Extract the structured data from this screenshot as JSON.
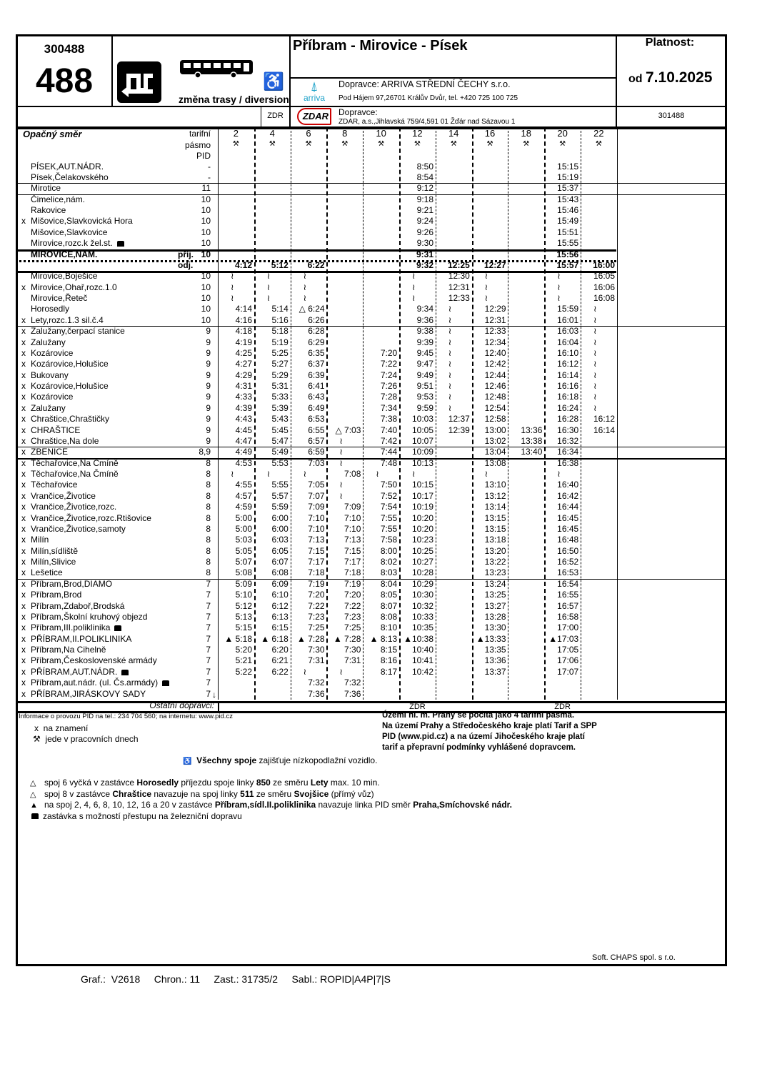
{
  "header": {
    "line_code": "300488",
    "line_number": "488",
    "diversion_label": "změna trasy / diversion",
    "route_title": "Příbram - Mirovice - Písek",
    "validity_label": "Platnost:",
    "validity_prefix": "od",
    "validity_date": "7.10.2025",
    "operator1_label": "Dopravce: ARRIVA STŘEDNÍ ČECHY s.r.o.",
    "operator1_address": "Pod Hájem 97,26701 Králův Dvůr, tel. +420 725 100 725",
    "operator1_logo": "arriva",
    "operator2_code": "ZDR",
    "operator2_logo": "ZDAR",
    "operator2_label": "Dopravce:",
    "operator2_address": "ZDAR, a.s.,Jihlavská 759/4,591 01 Žďár nad Sázavou 1",
    "alt_code": "301488",
    "icons": [
      "diversion-icon",
      "bus-icon",
      "wheelchair-icon"
    ]
  },
  "table": {
    "direction_label": "Opačný směr",
    "zone_header": [
      "tarifní",
      "pásmo",
      "PID"
    ],
    "workday_symbol": "⚒",
    "trips": [
      "2",
      "4",
      "6",
      "8",
      "10",
      "12",
      "14",
      "16",
      "18",
      "20",
      "22"
    ],
    "rows": [
      {
        "m": "",
        "n": "PÍSEK,AUT.NÁDR.",
        "z": "-",
        "t": [
          "",
          "",
          "",
          "",
          "",
          "8:50",
          "",
          "",
          "",
          "15:15",
          ""
        ]
      },
      {
        "m": "",
        "n": "Písek,Čelakovského",
        "z": "-",
        "t": [
          "",
          "",
          "",
          "",
          "",
          "8:54",
          "",
          "",
          "",
          "15:19",
          ""
        ]
      },
      {
        "m": "",
        "n": "Mirotice",
        "z": "11",
        "t": [
          "",
          "",
          "",
          "",
          "",
          "9:12",
          "",
          "",
          "",
          "15:37",
          ""
        ]
      },
      {
        "m": "",
        "n": "Čimelice,nám.",
        "z": "10",
        "t": [
          "",
          "",
          "",
          "",
          "",
          "9:18",
          "",
          "",
          "",
          "15:43",
          ""
        ]
      },
      {
        "m": "",
        "n": "Rakovice",
        "z": "10",
        "t": [
          "",
          "",
          "",
          "",
          "",
          "9:21",
          "",
          "",
          "",
          "15:46",
          ""
        ]
      },
      {
        "m": "x",
        "n": "Mišovice,Slavkovická Hora",
        "z": "10",
        "t": [
          "",
          "",
          "",
          "",
          "",
          "9:24",
          "",
          "",
          "",
          "15:49",
          ""
        ]
      },
      {
        "m": "",
        "n": "Mišovice,Slavkovice",
        "z": "10",
        "t": [
          "",
          "",
          "",
          "",
          "",
          "9:26",
          "",
          "",
          "",
          "15:51",
          ""
        ]
      },
      {
        "m": "",
        "n": "Mirovice,rozc.k žel.st.",
        "z": "10",
        "train": true,
        "t": [
          "",
          "",
          "",
          "",
          "",
          "9:30",
          "",
          "",
          "",
          "15:55",
          ""
        ]
      },
      {
        "m": "",
        "n": "MIROVICE,NÁM.",
        "s": "příj.",
        "z": "10",
        "bold": true,
        "t": [
          "",
          "",
          "",
          "",
          "",
          "9:31",
          "",
          "",
          "",
          "15:56",
          ""
        ]
      },
      {
        "m": "",
        "n": "",
        "s": "odj.",
        "z": "",
        "bold": true,
        "t": [
          "4:12",
          "5:12",
          "6:22",
          "",
          "",
          "9:32",
          "12:25",
          "12:27",
          "",
          "15:57",
          "16:00"
        ]
      },
      {
        "m": "",
        "n": "Mirovice,Boješice",
        "z": "10",
        "t": [
          "~",
          "~",
          "~",
          "",
          "",
          "~",
          "12:30",
          "~",
          "",
          "~",
          "16:05"
        ]
      },
      {
        "m": "x",
        "n": "Mirovice,Ohař,rozc.1.0",
        "z": "10",
        "t": [
          "~",
          "~",
          "~",
          "",
          "",
          "~",
          "12:31",
          "~",
          "",
          "~",
          "16:06"
        ]
      },
      {
        "m": "",
        "n": "Mirovice,Řeteč",
        "z": "10",
        "t": [
          "~",
          "~",
          "~",
          "",
          "",
          "~",
          "12:33",
          "~",
          "",
          "~",
          "16:08"
        ]
      },
      {
        "m": "",
        "n": "Horosedly",
        "z": "10",
        "t": [
          "4:14",
          "5:14",
          "△ 6:24",
          "",
          "",
          "9:34",
          "~",
          "12:29",
          "",
          "15:59",
          "~"
        ]
      },
      {
        "m": "x",
        "n": "Lety,rozc.1.3 sil.č.4",
        "z": "10",
        "t": [
          "4:16",
          "5:16",
          "6:26",
          "",
          "",
          "9:36",
          "~",
          "12:31",
          "",
          "16:01",
          "~"
        ]
      },
      {
        "m": "x",
        "n": "Zalužany,čerpací stanice",
        "z": "9",
        "t": [
          "4:18",
          "5:18",
          "6:28",
          "",
          "",
          "9:38",
          "~",
          "12:33",
          "",
          "16:03",
          "~"
        ]
      },
      {
        "m": "x",
        "n": "Zalužany",
        "z": "9",
        "t": [
          "4:19",
          "5:19",
          "6:29",
          "",
          "",
          "9:39",
          "~",
          "12:34",
          "",
          "16:04",
          "~"
        ]
      },
      {
        "m": "x",
        "n": "Kozárovice",
        "z": "9",
        "t": [
          "4:25",
          "5:25",
          "6:35",
          "",
          "7:20",
          "9:45",
          "~",
          "12:40",
          "",
          "16:10",
          "~"
        ]
      },
      {
        "m": "x",
        "n": "Kozárovice,Holušice",
        "z": "9",
        "t": [
          "4:27",
          "5:27",
          "6:37",
          "",
          "7:22",
          "9:47",
          "~",
          "12:42",
          "",
          "16:12",
          "~"
        ]
      },
      {
        "m": "x",
        "n": "Bukovany",
        "z": "9",
        "t": [
          "4:29",
          "5:29",
          "6:39",
          "",
          "7:24",
          "9:49",
          "~",
          "12:44",
          "",
          "16:14",
          "~"
        ]
      },
      {
        "m": "x",
        "n": "Kozárovice,Holušice",
        "z": "9",
        "t": [
          "4:31",
          "5:31",
          "6:41",
          "",
          "7:26",
          "9:51",
          "~",
          "12:46",
          "",
          "16:16",
          "~"
        ]
      },
      {
        "m": "x",
        "n": "Kozárovice",
        "z": "9",
        "t": [
          "4:33",
          "5:33",
          "6:43",
          "",
          "7:28",
          "9:53",
          "~",
          "12:48",
          "",
          "16:18",
          "~"
        ]
      },
      {
        "m": "x",
        "n": "Zalužany",
        "z": "9",
        "t": [
          "4:39",
          "5:39",
          "6:49",
          "",
          "7:34",
          "9:59",
          "~",
          "12:54",
          "",
          "16:24",
          "~"
        ]
      },
      {
        "m": "x",
        "n": "Chraštice,Chraštičky",
        "z": "9",
        "t": [
          "4:43",
          "5:43",
          "6:53",
          "",
          "7:38",
          "10:03",
          "12:37",
          "12:58",
          "",
          "16:28",
          "16:12"
        ]
      },
      {
        "m": "x",
        "n": "CHRAŠTICE",
        "z": "9",
        "t": [
          "4:45",
          "5:45",
          "6:55",
          "△ 7:03",
          "7:40",
          "10:05",
          "12:39",
          "13:00",
          "13:36",
          "16:30",
          "16:14"
        ]
      },
      {
        "m": "x",
        "n": "Chraštice,Na dole",
        "z": "9",
        "t": [
          "4:47",
          "5:47",
          "6:57",
          "~",
          "7:42",
          "10:07",
          "",
          "13:02",
          "13:38",
          "16:32",
          ""
        ]
      },
      {
        "m": "x",
        "n": "ZBENICE",
        "z": "8,9",
        "t": [
          "4:49",
          "5:49",
          "6:59",
          "~",
          "7:44",
          "10:09",
          "",
          "13:04",
          "13:40",
          "16:34",
          ""
        ]
      },
      {
        "m": "x",
        "n": "Těchařovice,Na Čmíně",
        "z": "8",
        "t": [
          "4:53",
          "5:53",
          "7:03",
          "~",
          "7:48",
          "10:13",
          "",
          "13:08",
          "",
          "16:38",
          ""
        ]
      },
      {
        "m": "x",
        "n": "Těchařovice,Na Čmíně",
        "z": "8",
        "t": [
          "~",
          "~",
          "~",
          "7:08",
          "~",
          "~",
          "",
          "~",
          "",
          "~",
          ""
        ]
      },
      {
        "m": "x",
        "n": "Těchařovice",
        "z": "8",
        "t": [
          "4:55",
          "5:55",
          "7:05",
          "~",
          "7:50",
          "10:15",
          "",
          "13:10",
          "",
          "16:40",
          ""
        ]
      },
      {
        "m": "x",
        "n": "Vrančice,Životice",
        "z": "8",
        "t": [
          "4:57",
          "5:57",
          "7:07",
          "~",
          "7:52",
          "10:17",
          "",
          "13:12",
          "",
          "16:42",
          ""
        ]
      },
      {
        "m": "x",
        "n": "Vrančice,Životice,rozc.",
        "z": "8",
        "t": [
          "4:59",
          "5:59",
          "7:09",
          "7:09",
          "7:54",
          "10:19",
          "",
          "13:14",
          "",
          "16:44",
          ""
        ]
      },
      {
        "m": "x",
        "n": "Vrančice,Životice,rozc.Rtišovice",
        "z": "8",
        "t": [
          "5:00",
          "6:00",
          "7:10",
          "7:10",
          "7:55",
          "10:20",
          "",
          "13:15",
          "",
          "16:45",
          ""
        ]
      },
      {
        "m": "x",
        "n": "Vrančice,Životice,samoty",
        "z": "8",
        "t": [
          "5:00",
          "6:00",
          "7:10",
          "7:10",
          "7:55",
          "10:20",
          "",
          "13:15",
          "",
          "16:45",
          ""
        ]
      },
      {
        "m": "x",
        "n": "Milín",
        "z": "8",
        "t": [
          "5:03",
          "6:03",
          "7:13",
          "7:13",
          "7:58",
          "10:23",
          "",
          "13:18",
          "",
          "16:48",
          ""
        ]
      },
      {
        "m": "x",
        "n": "Milín,sídliště",
        "z": "8",
        "t": [
          "5:05",
          "6:05",
          "7:15",
          "7:15",
          "8:00",
          "10:25",
          "",
          "13:20",
          "",
          "16:50",
          ""
        ]
      },
      {
        "m": "x",
        "n": "Milín,Slivice",
        "z": "8",
        "t": [
          "5:07",
          "6:07",
          "7:17",
          "7:17",
          "8:02",
          "10:27",
          "",
          "13:22",
          "",
          "16:52",
          ""
        ]
      },
      {
        "m": "x",
        "n": "Lešetice",
        "z": "8",
        "t": [
          "5:08",
          "6:08",
          "7:18",
          "7:18",
          "8:03",
          "10:28",
          "",
          "13:23",
          "",
          "16:53",
          ""
        ]
      },
      {
        "m": "x",
        "n": "Příbram,Brod,DIAMO",
        "z": "7",
        "t": [
          "5:09",
          "6:09",
          "7:19",
          "7:19",
          "8:04",
          "10:29",
          "",
          "13:24",
          "",
          "16:54",
          ""
        ]
      },
      {
        "m": "x",
        "n": "Příbram,Brod",
        "z": "7",
        "t": [
          "5:10",
          "6:10",
          "7:20",
          "7:20",
          "8:05",
          "10:30",
          "",
          "13:25",
          "",
          "16:55",
          ""
        ]
      },
      {
        "m": "x",
        "n": "Příbram,Zdaboř,Brodská",
        "z": "7",
        "t": [
          "5:12",
          "6:12",
          "7:22",
          "7:22",
          "8:07",
          "10:32",
          "",
          "13:27",
          "",
          "16:57",
          ""
        ]
      },
      {
        "m": "x",
        "n": "Příbram,Školní kruhový objezd",
        "z": "7",
        "t": [
          "5:13",
          "6:13",
          "7:23",
          "7:23",
          "8:08",
          "10:33",
          "",
          "13:28",
          "",
          "16:58",
          ""
        ]
      },
      {
        "m": "x",
        "n": "Příbram,III.poliklinika",
        "z": "7",
        "train": true,
        "t": [
          "5:15",
          "6:15",
          "7:25",
          "7:25",
          "8:10",
          "10:35",
          "",
          "13:30",
          "",
          "17:00",
          ""
        ]
      },
      {
        "m": "x",
        "n": "PŘÍBRAM,II.POLIKLINIKA",
        "z": "7",
        "t": [
          "▲ 5:18",
          "▲ 6:18",
          "▲ 7:28",
          "▲ 7:28",
          "▲ 8:13",
          "▲10:38",
          "",
          "▲13:33",
          "",
          "▲17:03",
          ""
        ]
      },
      {
        "m": "x",
        "n": "Příbram,Na Cihelně",
        "z": "7",
        "t": [
          "5:20",
          "6:20",
          "7:30",
          "7:30",
          "8:15",
          "10:40",
          "",
          "13:35",
          "",
          "17:05",
          ""
        ]
      },
      {
        "m": "x",
        "n": "Příbram,Československé armády",
        "z": "7",
        "t": [
          "5:21",
          "6:21",
          "7:31",
          "7:31",
          "8:16",
          "10:41",
          "",
          "13:36",
          "",
          "17:06",
          ""
        ]
      },
      {
        "m": "x",
        "n": "PŘÍBRAM,AUT.NÁDR.",
        "z": "7",
        "train": true,
        "t": [
          "5:22",
          "6:22",
          "~",
          "~",
          "8:17",
          "10:42",
          "",
          "13:37",
          "",
          "17:07",
          ""
        ]
      },
      {
        "m": "x",
        "n": "Příbram,aut.nádr. (ul. Čs.armády)",
        "z": "7",
        "train": true,
        "t": [
          "",
          "",
          "7:32",
          "7:32",
          "",
          "",
          "",
          "",
          "",
          "",
          ""
        ]
      },
      {
        "m": "x",
        "n": "PŘÍBRAM,JIRÁSKOVY SADY",
        "z": "7",
        "end": "↓",
        "t": [
          "",
          "",
          "7:36",
          "7:36",
          "",
          "",
          "",
          "",
          "",
          "",
          ""
        ]
      }
    ],
    "other_operators_label": "Ostatní dopravci:",
    "other_operators": [
      "",
      "",
      "",
      "",
      "",
      "ZDR",
      "",
      "",
      "",
      "ZDR",
      ""
    ]
  },
  "footer": {
    "info": "Informace o provozu PID na  tel.: 234 704 560; na internetu: www.pid.cz",
    "legend": [
      {
        "sym": "x",
        "text": "na znamení"
      },
      {
        "sym": "⚒",
        "text": "jede v pracovních dnech"
      }
    ],
    "tariff_note": [
      "Území hl. m. Prahy se počítá jako 4 tarifní pásma.",
      "Na území Prahy a Středočeského kraje platí Tarif a SPP",
      "PID (www.pid.cz) a na území Jihočeského kraje platí",
      "tarif a přepravní podmínky vyhlášené dopravcem."
    ],
    "accessibility_bold": "Všechny spoje",
    "accessibility_rest": " zajišťuje nízkopodlažní vozidlo.",
    "notes": [
      {
        "sym": "△",
        "parts": [
          [
            "spoj 6 vyčká v zastávce ",
            0
          ],
          [
            "Horosedly",
            1
          ],
          [
            " příjezdu spoje linky ",
            0
          ],
          [
            "850",
            1
          ],
          [
            " ze směru ",
            0
          ],
          [
            "Lety",
            1
          ],
          [
            " max. 10 min.",
            0
          ]
        ]
      },
      {
        "sym": "△",
        "parts": [
          [
            "spoj 8 v zastávce ",
            0
          ],
          [
            "Chraštice",
            1
          ],
          [
            " navazuje na spoj linky ",
            0
          ],
          [
            "511",
            1
          ],
          [
            " ze směru ",
            0
          ],
          [
            "Svojšice",
            1
          ],
          [
            " (přímý vůz)",
            0
          ]
        ]
      },
      {
        "sym": "▲",
        "parts": [
          [
            "na spoj 2, 4, 6, 8, 10, 12, 16 a 20 v zastávce ",
            0
          ],
          [
            "Příbram,sídl.II.poliklinika",
            1
          ],
          [
            " navazuje linka PID směr ",
            0
          ],
          [
            "Praha,Smíchovské nádr.",
            1
          ]
        ]
      },
      {
        "sym": "train",
        "parts": [
          [
            "zastávka s možností přestupu na železniční dopravu",
            0
          ]
        ]
      }
    ],
    "software": "Soft. CHAPS spol. s r.o.",
    "meta": "Graf.:  V2618     Chron.: 11     Zast.: 31735/2     Sabl.: ROPID|A4P|7|S"
  }
}
